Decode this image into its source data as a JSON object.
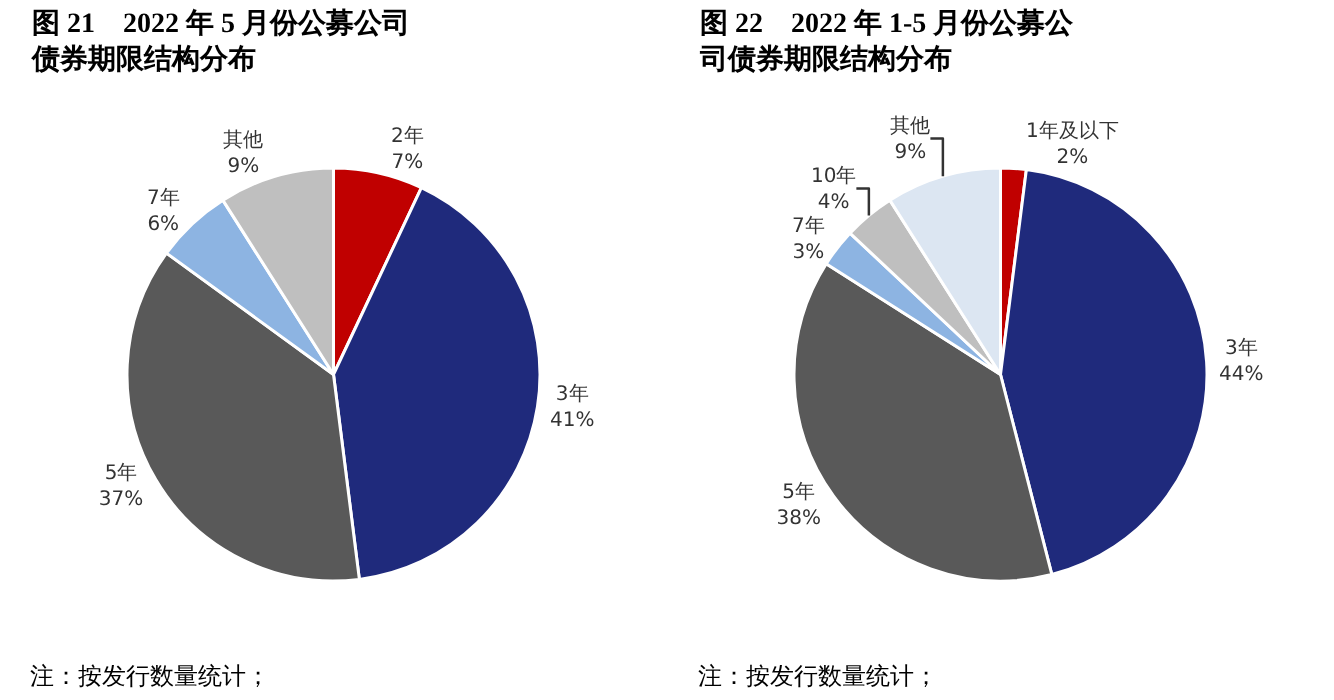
{
  "chart_data": [
    {
      "type": "pie",
      "title": "图 21　2022 年 5 月份公募公司债券期限结构分布",
      "categories": [
        "2年",
        "3年",
        "5年",
        "7年",
        "其他"
      ],
      "values": [
        7,
        41,
        37,
        6,
        9
      ],
      "value_labels": [
        "7%",
        "41%",
        "37%",
        "6%",
        "9%"
      ],
      "colors": [
        "#c00000",
        "#1f2a7c",
        "#595959",
        "#8db4e2",
        "#bfbfbf"
      ],
      "legend": false,
      "annotations": [
        "注：按发行数量统计；"
      ]
    },
    {
      "type": "pie",
      "title": "图 22　2022 年 1-5 月份公募公司债券期限结构分布",
      "categories": [
        "1年及以下",
        "3年",
        "5年",
        "7年",
        "10年",
        "其他"
      ],
      "values": [
        2,
        44,
        38,
        3,
        4,
        9
      ],
      "value_labels": [
        "2%",
        "44%",
        "38%",
        "3%",
        "4%",
        "9%"
      ],
      "colors": [
        "#c00000",
        "#1f2a7c",
        "#595959",
        "#8db4e2",
        "#bfbfbf",
        "#dce6f2"
      ],
      "legend": false,
      "annotations": [
        "注：按发行数量统计；"
      ]
    }
  ]
}
